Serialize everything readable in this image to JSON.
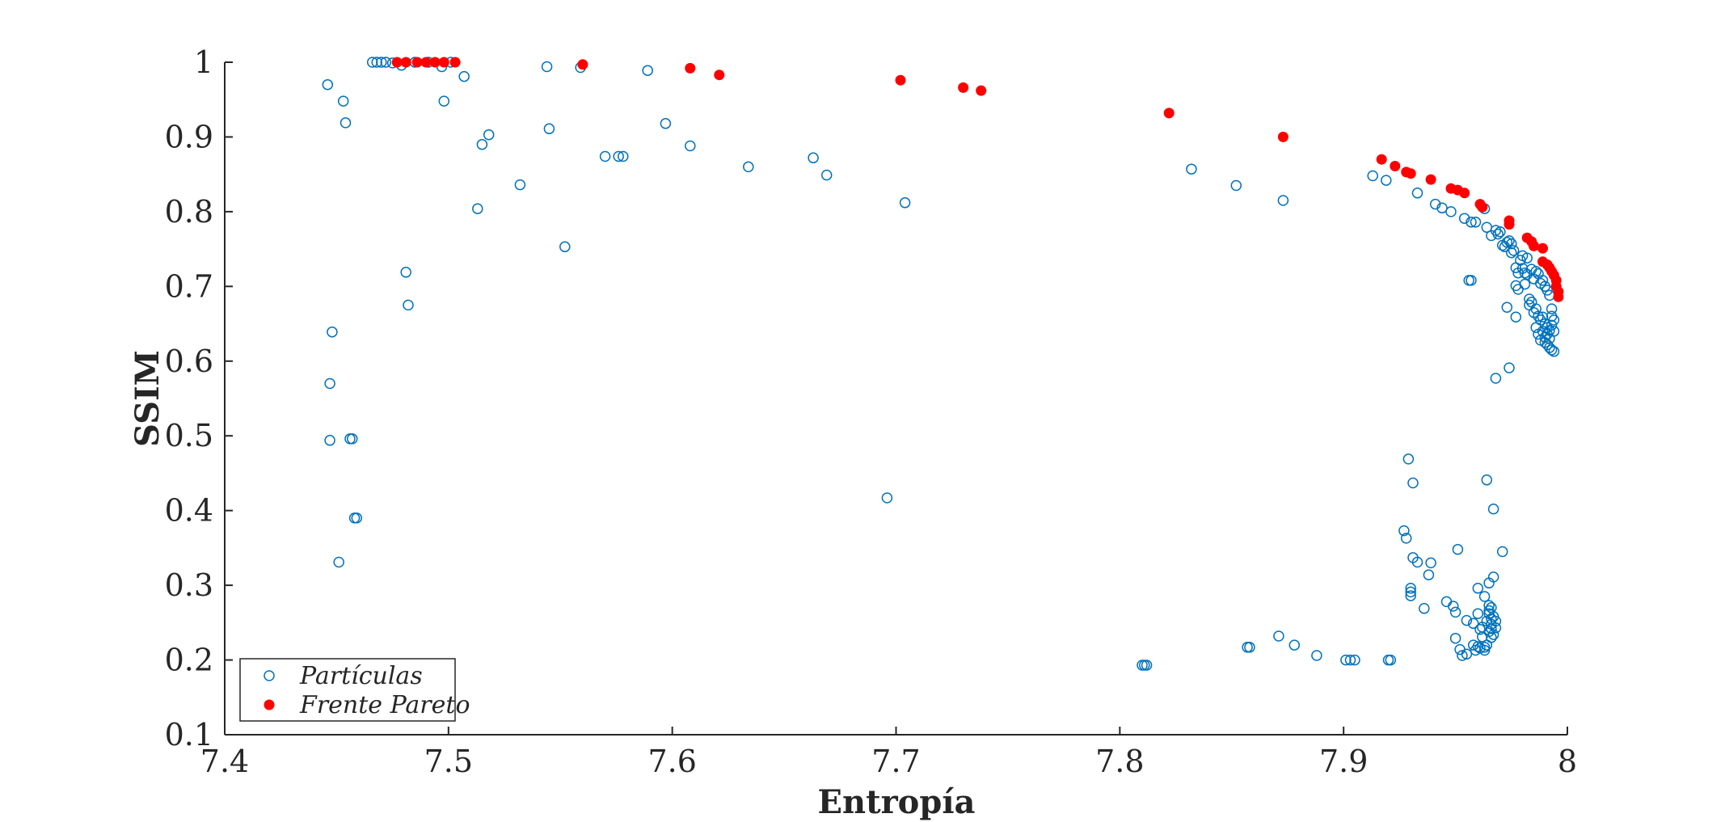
{
  "chart_data": {
    "type": "scatter",
    "title": "",
    "xlabel": "Entropía",
    "ylabel": "SSIM",
    "xlim": [
      7.4,
      8.0
    ],
    "ylim": [
      0.1,
      1.0
    ],
    "xticks": [
      "7.4",
      "7.5",
      "7.6",
      "7.7",
      "7.8",
      "7.9",
      "8"
    ],
    "yticks": [
      "0.1",
      "0.2",
      "0.3",
      "0.4",
      "0.5",
      "0.6",
      "0.7",
      "0.8",
      "0.9",
      "1"
    ],
    "grid": false,
    "legend_position": "bottom-left",
    "series": [
      {
        "name": "Partículas",
        "marker": "open-circle",
        "color": "#0072BD",
        "points": [
          [
            7.446,
            0.97
          ],
          [
            7.448,
            0.639
          ],
          [
            7.447,
            0.57
          ],
          [
            7.447,
            0.494
          ],
          [
            7.451,
            0.331
          ],
          [
            7.453,
            0.948
          ],
          [
            7.454,
            0.919
          ],
          [
            7.456,
            0.496
          ],
          [
            7.457,
            0.496
          ],
          [
            7.458,
            0.39
          ],
          [
            7.459,
            0.39
          ],
          [
            7.466,
            1.0
          ],
          [
            7.468,
            1.0
          ],
          [
            7.47,
            1.0
          ],
          [
            7.472,
            1.0
          ],
          [
            7.475,
            0.999
          ],
          [
            7.479,
            0.996
          ],
          [
            7.485,
            1.0
          ],
          [
            7.491,
            1.0
          ],
          [
            7.497,
            0.994
          ],
          [
            7.501,
            1.0
          ],
          [
            7.481,
            0.719
          ],
          [
            7.482,
            0.675
          ],
          [
            7.498,
            0.948
          ],
          [
            7.507,
            0.981
          ],
          [
            7.513,
            0.804
          ],
          [
            7.515,
            0.89
          ],
          [
            7.518,
            0.903
          ],
          [
            7.532,
            0.836
          ],
          [
            7.544,
            0.994
          ],
          [
            7.545,
            0.911
          ],
          [
            7.552,
            0.753
          ],
          [
            7.559,
            0.993
          ],
          [
            7.57,
            0.874
          ],
          [
            7.576,
            0.874
          ],
          [
            7.578,
            0.874
          ],
          [
            7.589,
            0.989
          ],
          [
            7.597,
            0.918
          ],
          [
            7.608,
            0.888
          ],
          [
            7.634,
            0.86
          ],
          [
            7.663,
            0.872
          ],
          [
            7.669,
            0.849
          ],
          [
            7.696,
            0.417
          ],
          [
            7.704,
            0.812
          ],
          [
            7.81,
            0.193
          ],
          [
            7.811,
            0.193
          ],
          [
            7.812,
            0.193
          ],
          [
            7.832,
            0.857
          ],
          [
            7.852,
            0.835
          ],
          [
            7.857,
            0.217
          ],
          [
            7.858,
            0.217
          ],
          [
            7.871,
            0.232
          ],
          [
            7.873,
            0.815
          ],
          [
            7.878,
            0.22
          ],
          [
            7.888,
            0.206
          ],
          [
            7.901,
            0.2
          ],
          [
            7.903,
            0.2
          ],
          [
            7.905,
            0.2
          ],
          [
            7.92,
            0.2
          ],
          [
            7.921,
            0.2
          ],
          [
            7.913,
            0.848
          ],
          [
            7.919,
            0.842
          ],
          [
            7.927,
            0.373
          ],
          [
            7.928,
            0.363
          ],
          [
            7.929,
            0.469
          ],
          [
            7.931,
            0.437
          ],
          [
            7.933,
            0.825
          ],
          [
            7.93,
            0.296
          ],
          [
            7.93,
            0.291
          ],
          [
            7.93,
            0.286
          ],
          [
            7.931,
            0.337
          ],
          [
            7.933,
            0.331
          ],
          [
            7.936,
            0.269
          ],
          [
            7.938,
            0.314
          ],
          [
            7.939,
            0.33
          ],
          [
            7.941,
            0.81
          ],
          [
            7.944,
            0.805
          ],
          [
            7.946,
            0.278
          ],
          [
            7.948,
            0.8
          ],
          [
            7.949,
            0.272
          ],
          [
            7.95,
            0.264
          ],
          [
            7.95,
            0.229
          ],
          [
            7.951,
            0.348
          ],
          [
            7.952,
            0.214
          ],
          [
            7.953,
            0.206
          ],
          [
            7.954,
            0.791
          ],
          [
            7.955,
            0.208
          ],
          [
            7.955,
            0.253
          ],
          [
            7.956,
            0.708
          ],
          [
            7.957,
            0.708
          ],
          [
            7.957,
            0.786
          ],
          [
            7.958,
            0.249
          ],
          [
            7.958,
            0.22
          ],
          [
            7.959,
            0.213
          ],
          [
            7.959,
            0.786
          ],
          [
            7.96,
            0.218
          ],
          [
            7.96,
            0.296
          ],
          [
            7.96,
            0.262
          ],
          [
            7.961,
            0.241
          ],
          [
            7.961,
            0.216
          ],
          [
            7.962,
            0.244
          ],
          [
            7.962,
            0.231
          ],
          [
            7.963,
            0.213
          ],
          [
            7.963,
            0.217
          ],
          [
            7.963,
            0.285
          ],
          [
            7.963,
            0.804
          ],
          [
            7.964,
            0.441
          ],
          [
            7.964,
            0.779
          ],
          [
            7.964,
            0.22
          ],
          [
            7.964,
            0.252
          ],
          [
            7.965,
            0.262
          ],
          [
            7.965,
            0.303
          ],
          [
            7.965,
            0.238
          ],
          [
            7.965,
            0.273
          ],
          [
            7.965,
            0.266
          ],
          [
            7.966,
            0.255
          ],
          [
            7.966,
            0.248
          ],
          [
            7.966,
            0.27
          ],
          [
            7.966,
            0.23
          ],
          [
            7.966,
            0.242
          ],
          [
            7.966,
            0.768
          ],
          [
            7.967,
            0.258
          ],
          [
            7.967,
            0.234
          ],
          [
            7.967,
            0.402
          ],
          [
            7.967,
            0.311
          ],
          [
            7.968,
            0.577
          ],
          [
            7.968,
            0.243
          ],
          [
            7.968,
            0.252
          ],
          [
            7.968,
            0.775
          ],
          [
            7.969,
            0.77
          ],
          [
            7.97,
            0.773
          ],
          [
            7.971,
            0.345
          ],
          [
            7.971,
            0.755
          ],
          [
            7.972,
            0.753
          ],
          [
            7.973,
            0.672
          ],
          [
            7.973,
            0.759
          ],
          [
            7.974,
            0.591
          ],
          [
            7.974,
            0.761
          ],
          [
            7.975,
            0.757
          ],
          [
            7.975,
            0.745
          ],
          [
            7.976,
            0.748
          ],
          [
            7.977,
            0.701
          ],
          [
            7.977,
            0.725
          ],
          [
            7.977,
            0.659
          ],
          [
            7.978,
            0.696
          ],
          [
            7.978,
            0.718
          ],
          [
            7.979,
            0.735
          ],
          [
            7.98,
            0.724
          ],
          [
            7.98,
            0.741
          ],
          [
            7.981,
            0.703
          ],
          [
            7.981,
            0.718
          ],
          [
            7.982,
            0.738
          ],
          [
            7.982,
            0.716
          ],
          [
            7.983,
            0.683
          ],
          [
            7.983,
            0.675
          ],
          [
            7.984,
            0.679
          ],
          [
            7.984,
            0.723
          ],
          [
            7.985,
            0.665
          ],
          [
            7.985,
            0.71
          ],
          [
            7.986,
            0.67
          ],
          [
            7.986,
            0.72
          ],
          [
            7.986,
            0.645
          ],
          [
            7.987,
            0.636
          ],
          [
            7.987,
            0.66
          ],
          [
            7.987,
            0.717
          ],
          [
            7.988,
            0.655
          ],
          [
            7.988,
            0.704
          ],
          [
            7.988,
            0.628
          ],
          [
            7.989,
            0.659
          ],
          [
            7.989,
            0.64
          ],
          [
            7.989,
            0.708
          ],
          [
            7.99,
            0.632
          ],
          [
            7.99,
            0.65
          ],
          [
            7.99,
            0.7
          ],
          [
            7.99,
            0.625
          ],
          [
            7.991,
            0.645
          ],
          [
            7.991,
            0.636
          ],
          [
            7.991,
            0.695
          ],
          [
            7.991,
            0.622
          ],
          [
            7.992,
            0.641
          ],
          [
            7.992,
            0.63
          ],
          [
            7.992,
            0.688
          ],
          [
            7.992,
            0.618
          ],
          [
            7.993,
            0.67
          ],
          [
            7.993,
            0.66
          ],
          [
            7.993,
            0.648
          ],
          [
            7.993,
            0.615
          ],
          [
            7.994,
            0.655
          ],
          [
            7.994,
            0.64
          ],
          [
            7.994,
            0.613
          ]
        ]
      },
      {
        "name": "Frente Pareto",
        "marker": "filled-circle",
        "color": "#FF0000",
        "points": [
          [
            7.477,
            1.0
          ],
          [
            7.481,
            1.0
          ],
          [
            7.486,
            1.0
          ],
          [
            7.49,
            1.0
          ],
          [
            7.494,
            1.0
          ],
          [
            7.498,
            1.0
          ],
          [
            7.503,
            1.0
          ],
          [
            7.56,
            0.997
          ],
          [
            7.608,
            0.992
          ],
          [
            7.621,
            0.983
          ],
          [
            7.702,
            0.976
          ],
          [
            7.73,
            0.966
          ],
          [
            7.738,
            0.962
          ],
          [
            7.822,
            0.932
          ],
          [
            7.873,
            0.9
          ],
          [
            7.917,
            0.87
          ],
          [
            7.923,
            0.861
          ],
          [
            7.928,
            0.853
          ],
          [
            7.93,
            0.851
          ],
          [
            7.939,
            0.843
          ],
          [
            7.948,
            0.831
          ],
          [
            7.951,
            0.829
          ],
          [
            7.954,
            0.825
          ],
          [
            7.961,
            0.81
          ],
          [
            7.962,
            0.806
          ],
          [
            7.974,
            0.788
          ],
          [
            7.974,
            0.783
          ],
          [
            7.982,
            0.765
          ],
          [
            7.984,
            0.76
          ],
          [
            7.985,
            0.754
          ],
          [
            7.989,
            0.751
          ],
          [
            7.989,
            0.733
          ],
          [
            7.991,
            0.729
          ],
          [
            7.992,
            0.725
          ],
          [
            7.993,
            0.72
          ],
          [
            7.994,
            0.715
          ],
          [
            7.995,
            0.708
          ],
          [
            7.995,
            0.7
          ],
          [
            7.996,
            0.693
          ],
          [
            7.996,
            0.686
          ]
        ]
      }
    ]
  }
}
